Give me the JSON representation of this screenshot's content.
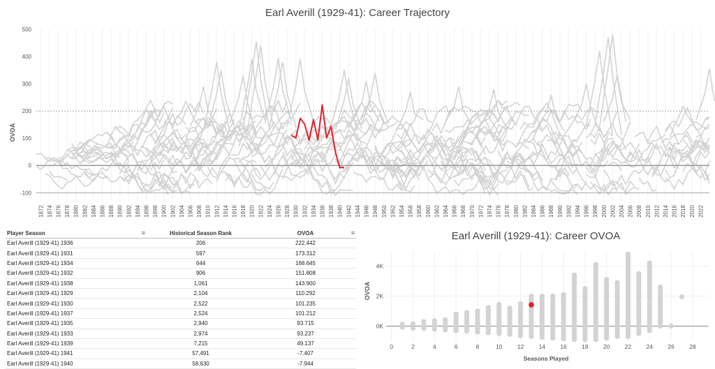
{
  "trajectory": {
    "title": "Earl Averill (1929-41): Career Trajectory",
    "ylabel": "OVOA"
  },
  "scatter": {
    "title": "Earl Averill (1929-41): Career OVOA",
    "ylabel": "OVOA",
    "xlabel": "Seasons Played"
  },
  "table": {
    "headers": {
      "player_season": "Player Season",
      "rank": "Historical Season Rank",
      "ovoa": "OVOA"
    },
    "sort_icon": "sort-icon",
    "rows": [
      {
        "season": "Earl Averill (1929-41) 1936",
        "rank": "206",
        "ovoa": "222.442"
      },
      {
        "season": "Earl Averill (1929-41) 1931",
        "rank": "597",
        "ovoa": "173.312"
      },
      {
        "season": "Earl Averill (1929-41) 1934",
        "rank": "644",
        "ovoa": "168.645"
      },
      {
        "season": "Earl Averill (1929-41) 1932",
        "rank": "906",
        "ovoa": "151.808"
      },
      {
        "season": "Earl Averill (1929-41) 1938",
        "rank": "1,061",
        "ovoa": "143.900"
      },
      {
        "season": "Earl Averill (1929-41) 1929",
        "rank": "2,104",
        "ovoa": "110.292"
      },
      {
        "season": "Earl Averill (1929-41) 1930",
        "rank": "2,522",
        "ovoa": "101.235"
      },
      {
        "season": "Earl Averill (1929-41) 1937",
        "rank": "2,524",
        "ovoa": "101.212"
      },
      {
        "season": "Earl Averill (1929-41) 1935",
        "rank": "2,940",
        "ovoa": "93.715"
      },
      {
        "season": "Earl Averill (1929-41) 1933",
        "rank": "2,974",
        "ovoa": "93.237"
      },
      {
        "season": "Earl Averill (1929-41) 1939",
        "rank": "7,215",
        "ovoa": "49.137"
      },
      {
        "season": "Earl Averill (1929-41) 1941",
        "rank": "57,491",
        "ovoa": "-7.407"
      },
      {
        "season": "Earl Averill (1929-41) 1940",
        "rank": "58,630",
        "ovoa": "-7.944"
      }
    ]
  },
  "chart_data": [
    {
      "type": "line",
      "title": "Earl Averill (1929-41): Career Trajectory",
      "xlabel": "",
      "ylabel": "OVOA",
      "ylim": [
        -130,
        500
      ],
      "xlim": [
        1871,
        2024
      ],
      "yticks": [
        -100,
        0,
        100,
        200,
        300,
        400,
        500
      ],
      "xticks": [
        1872,
        1874,
        1876,
        1878,
        1880,
        1882,
        1884,
        1886,
        1888,
        1890,
        1892,
        1894,
        1896,
        1898,
        1900,
        1902,
        1904,
        1906,
        1908,
        1910,
        1912,
        1914,
        1916,
        1918,
        1920,
        1922,
        1924,
        1926,
        1928,
        1930,
        1932,
        1934,
        1936,
        1938,
        1940,
        1942,
        1944,
        1946,
        1948,
        1950,
        1952,
        1954,
        1956,
        1958,
        1960,
        1962,
        1964,
        1966,
        1968,
        1970,
        1972,
        1974,
        1976,
        1978,
        1980,
        1982,
        1984,
        1986,
        1988,
        1990,
        1992,
        1994,
        1996,
        1998,
        2000,
        2002,
        2004,
        2006,
        2008,
        2010,
        2012,
        2014,
        2016,
        2018,
        2020,
        2022
      ],
      "reference_lines": [
        200,
        0,
        -100
      ],
      "background_series": "all player careers (gray)",
      "colors": {
        "highlight": "#e0212b",
        "background": "#d3d3d3"
      },
      "series": [
        {
          "name": "Earl Averill (1929-41)",
          "x": [
            1929,
            1930,
            1931,
            1932,
            1933,
            1934,
            1935,
            1936,
            1937,
            1938,
            1939,
            1940,
            1941
          ],
          "y": [
            110.292,
            101.235,
            173.312,
            151.808,
            93.237,
            168.645,
            93.715,
            222.442,
            101.212,
            143.9,
            49.137,
            -7.944,
            -7.407
          ]
        }
      ]
    },
    {
      "type": "scatter",
      "title": "Earl Averill (1929-41): Career OVOA",
      "xlabel": "Seasons Played",
      "ylabel": "OVOA",
      "xlim": [
        -0.5,
        29.5
      ],
      "ylim": [
        -1000,
        4900
      ],
      "xticks": [
        0,
        2,
        4,
        6,
        8,
        10,
        12,
        14,
        16,
        18,
        20,
        22,
        24,
        26,
        28
      ],
      "yticks": [
        0,
        2000,
        4000
      ],
      "ytick_labels": [
        "0K",
        "2K",
        "4K"
      ],
      "colors": {
        "highlight": "#e0212b",
        "background": "#d3d3d3"
      },
      "highlight": {
        "name": "Earl Averill (1929-41)",
        "x": 13,
        "y": 1420
      },
      "background_ranges": [
        {
          "x": 1,
          "min": -80,
          "max": 120
        },
        {
          "x": 2,
          "min": -150,
          "max": 160
        },
        {
          "x": 3,
          "min": -150,
          "max": 300
        },
        {
          "x": 4,
          "min": -200,
          "max": 350
        },
        {
          "x": 5,
          "min": -250,
          "max": 420
        },
        {
          "x": 6,
          "min": -300,
          "max": 800
        },
        {
          "x": 7,
          "min": -350,
          "max": 900
        },
        {
          "x": 8,
          "min": -400,
          "max": 1000
        },
        {
          "x": 9,
          "min": -450,
          "max": 1250
        },
        {
          "x": 10,
          "min": -500,
          "max": 1450
        },
        {
          "x": 11,
          "min": -550,
          "max": 1200
        },
        {
          "x": 12,
          "min": -650,
          "max": 1500
        },
        {
          "x": 13,
          "min": -700,
          "max": 2000
        },
        {
          "x": 14,
          "min": -750,
          "max": 2000
        },
        {
          "x": 15,
          "min": -800,
          "max": 2000
        },
        {
          "x": 16,
          "min": -850,
          "max": 2100
        },
        {
          "x": 17,
          "min": -900,
          "max": 3400
        },
        {
          "x": 18,
          "min": -900,
          "max": 2500
        },
        {
          "x": 19,
          "min": -900,
          "max": 4100
        },
        {
          "x": 20,
          "min": -800,
          "max": 3100
        },
        {
          "x": 21,
          "min": -700,
          "max": 2900
        },
        {
          "x": 22,
          "min": -700,
          "max": 4800
        },
        {
          "x": 23,
          "min": -500,
          "max": 3500
        },
        {
          "x": 24,
          "min": -300,
          "max": 4200
        },
        {
          "x": 25,
          "min": 0,
          "max": 2600
        },
        {
          "x": 26,
          "min": 0,
          "max": 0
        },
        {
          "x": 27,
          "min": 1950,
          "max": 1950
        }
      ]
    }
  ]
}
